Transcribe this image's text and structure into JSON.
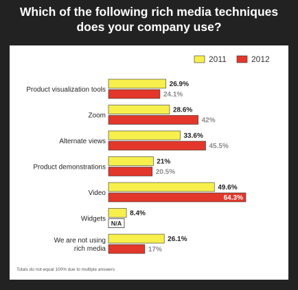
{
  "chart_data": {
    "type": "bar",
    "orientation": "horizontal",
    "title": "Which of the following rich media techniques does your company use?",
    "categories": [
      [
        "Product visualization tools"
      ],
      [
        "Zoom"
      ],
      [
        "Alternate views"
      ],
      [
        "Product demonstrations"
      ],
      [
        "Video"
      ],
      [
        "Widgets"
      ],
      [
        "We are not using",
        "rich media"
      ]
    ],
    "series": [
      {
        "name": "2011",
        "color": "#f7ef4c",
        "values": [
          26.9,
          28.6,
          33.6,
          21,
          49.6,
          8.4,
          26.1
        ],
        "labels": [
          "26.9%",
          "28.6%",
          "33.6%",
          "21%",
          "49.6%",
          "8.4%",
          "26.1%"
        ]
      },
      {
        "name": "2012",
        "color": "#e2372a",
        "values": [
          24.1,
          42,
          45.5,
          20.5,
          64.3,
          null,
          17
        ],
        "labels": [
          "24.1%",
          "42%",
          "45.5%",
          "20.5%",
          "64.3%",
          "N/A",
          "17%"
        ]
      }
    ],
    "legend": {
      "placement": "top-right"
    },
    "grid": false,
    "xlim": [
      0,
      70
    ],
    "footnote": "Totals do not equal 100% due to multiple answers"
  }
}
